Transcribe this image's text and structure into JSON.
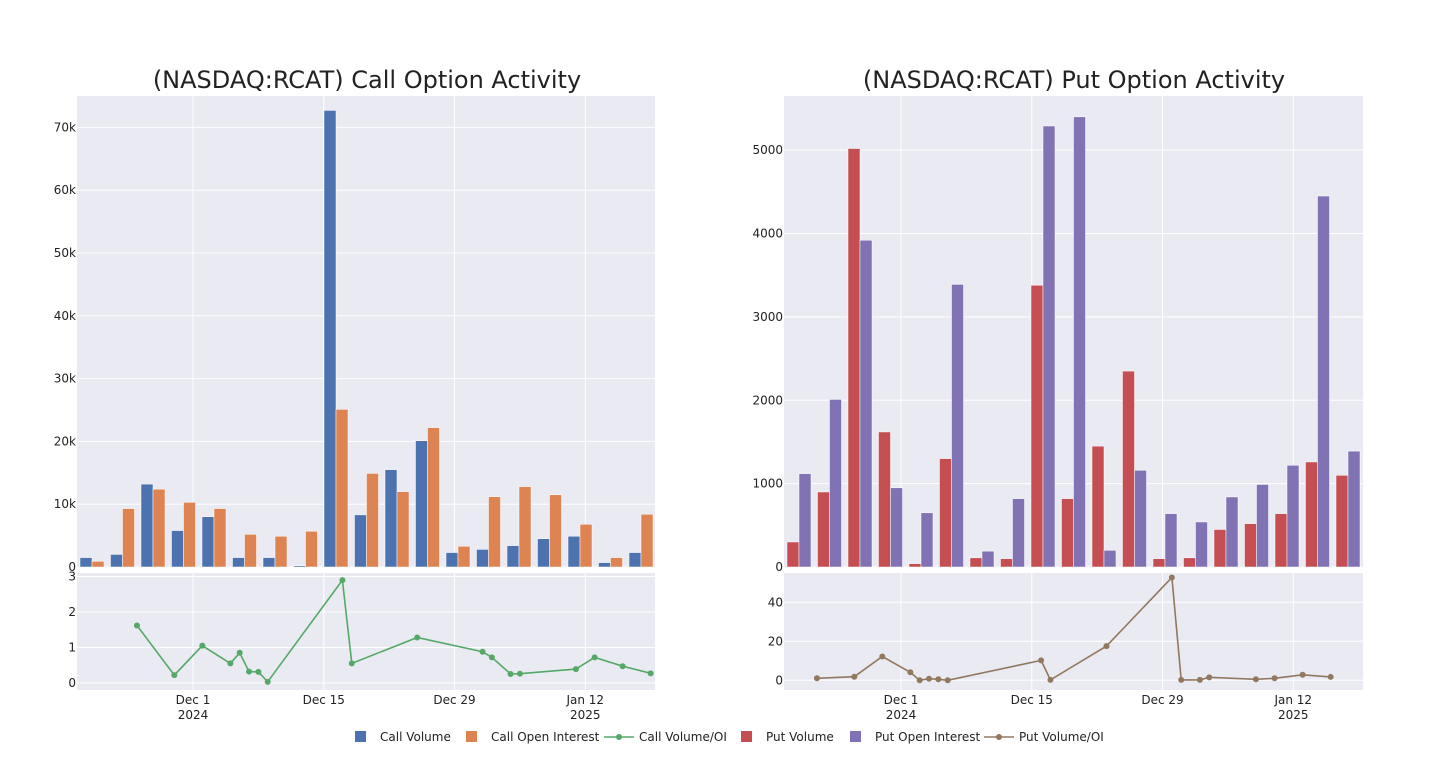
{
  "colors": {
    "call_volume": "#4c72b0",
    "call_oi": "#dd8452",
    "call_ratio": "#55a868",
    "put_volume": "#c44e52",
    "put_oi": "#8172b3",
    "put_ratio": "#937860",
    "plot_bg": "#eaeaf2",
    "grid": "#ffffff"
  },
  "chart_data": [
    {
      "id": "call",
      "type": "bar",
      "title": "(NASDAQ:RCAT) Call Option Activity",
      "bar_ylim": [
        0,
        75000
      ],
      "bar_yticks": [
        0,
        10000,
        20000,
        30000,
        40000,
        50000,
        60000,
        70000
      ],
      "bar_ytick_labels": [
        "0",
        "10k",
        "20k",
        "30k",
        "40k",
        "50k",
        "60k",
        "70k"
      ],
      "series": [
        {
          "name": "Call Volume",
          "values": [
            1500,
            2000,
            13200,
            5800,
            8000,
            1500,
            1500,
            200,
            72700,
            8300,
            15500,
            20100,
            2300,
            2800,
            3400,
            4500,
            4900,
            700,
            2300
          ]
        },
        {
          "name": "Call Open Interest",
          "values": [
            900,
            9300,
            12400,
            10300,
            9300,
            5200,
            4900,
            5700,
            25100,
            14900,
            12000,
            22200,
            3300,
            11200,
            12800,
            11500,
            6800,
            1500,
            8400
          ]
        }
      ],
      "ratio_series": {
        "name": "Call Volume/OI",
        "ylim": [
          -0.2,
          3.1
        ],
        "yticks": [
          0,
          1,
          2,
          3
        ],
        "points": [
          [
            -6,
            1.62
          ],
          [
            -2,
            0.22
          ],
          [
            1,
            1.05
          ],
          [
            4,
            0.55
          ],
          [
            5,
            0.85
          ],
          [
            6,
            0.32
          ],
          [
            7,
            0.31
          ],
          [
            8,
            0.03
          ],
          [
            16,
            2.9
          ],
          [
            17,
            0.55
          ],
          [
            24,
            1.28
          ],
          [
            31,
            0.88
          ],
          [
            32,
            0.72
          ],
          [
            34,
            0.25
          ],
          [
            35,
            0.26
          ],
          [
            41,
            0.39
          ],
          [
            43,
            0.72
          ],
          [
            46,
            0.47
          ],
          [
            49,
            0.27
          ]
        ]
      },
      "x_ticks": [
        {
          "day": 0,
          "label": "Dec 1",
          "sub": "2024"
        },
        {
          "day": 14,
          "label": "Dec 15",
          "sub": ""
        },
        {
          "day": 28,
          "label": "Dec 29",
          "sub": ""
        },
        {
          "day": 42,
          "label": "Jan 12",
          "sub": "2025"
        }
      ]
    },
    {
      "id": "put",
      "type": "bar",
      "title": "(NASDAQ:RCAT) Put Option Activity",
      "bar_ylim": [
        0,
        5650
      ],
      "bar_yticks": [
        0,
        1000,
        2000,
        3000,
        4000,
        5000
      ],
      "bar_ytick_labels": [
        "0",
        "1000",
        "2000",
        "3000",
        "4000",
        "5000"
      ],
      "series": [
        {
          "name": "Put Volume",
          "values": [
            300,
            900,
            5020,
            1620,
            40,
            1300,
            110,
            100,
            3380,
            820,
            1450,
            2350,
            100,
            110,
            450,
            520,
            640,
            1260,
            1100
          ]
        },
        {
          "name": "Put Open Interest",
          "values": [
            1120,
            2010,
            3920,
            950,
            650,
            3390,
            190,
            820,
            5290,
            5400,
            200,
            1160,
            640,
            540,
            840,
            990,
            1220,
            4450,
            1390
          ]
        }
      ],
      "ratio_series": {
        "name": "Put Volume/OI",
        "ylim": [
          -5,
          55
        ],
        "yticks": [
          0,
          20,
          40
        ],
        "points": [
          [
            -9,
            1
          ],
          [
            -5,
            1.8
          ],
          [
            -2,
            12.2
          ],
          [
            1,
            4.1
          ],
          [
            2,
            0
          ],
          [
            3,
            0.8
          ],
          [
            4,
            0.5
          ],
          [
            5,
            0
          ],
          [
            15,
            10.2
          ],
          [
            16,
            0.2
          ],
          [
            22,
            17.5
          ],
          [
            29,
            52.7
          ],
          [
            30,
            0.2
          ],
          [
            32,
            0.2
          ],
          [
            33,
            1.5
          ],
          [
            38,
            0.5
          ],
          [
            40,
            1
          ],
          [
            43,
            2.8
          ],
          [
            46,
            1.7
          ]
        ]
      },
      "x_ticks": [
        {
          "day": 0,
          "label": "Dec 1",
          "sub": "2024"
        },
        {
          "day": 14,
          "label": "Dec 15",
          "sub": ""
        },
        {
          "day": 28,
          "label": "Dec 29",
          "sub": ""
        },
        {
          "day": 42,
          "label": "Jan 12",
          "sub": "2025"
        }
      ]
    }
  ],
  "legend": [
    {
      "label": "Call Volume",
      "kind": "bar",
      "color_key": "call_volume"
    },
    {
      "label": "Call Open Interest",
      "kind": "bar",
      "color_key": "call_oi"
    },
    {
      "label": "Call Volume/OI",
      "kind": "line",
      "color_key": "call_ratio"
    },
    {
      "label": "Put Volume",
      "kind": "bar",
      "color_key": "put_volume"
    },
    {
      "label": "Put Open Interest",
      "kind": "bar",
      "color_key": "put_oi"
    },
    {
      "label": "Put Volume/OI",
      "kind": "line",
      "color_key": "put_ratio"
    }
  ]
}
